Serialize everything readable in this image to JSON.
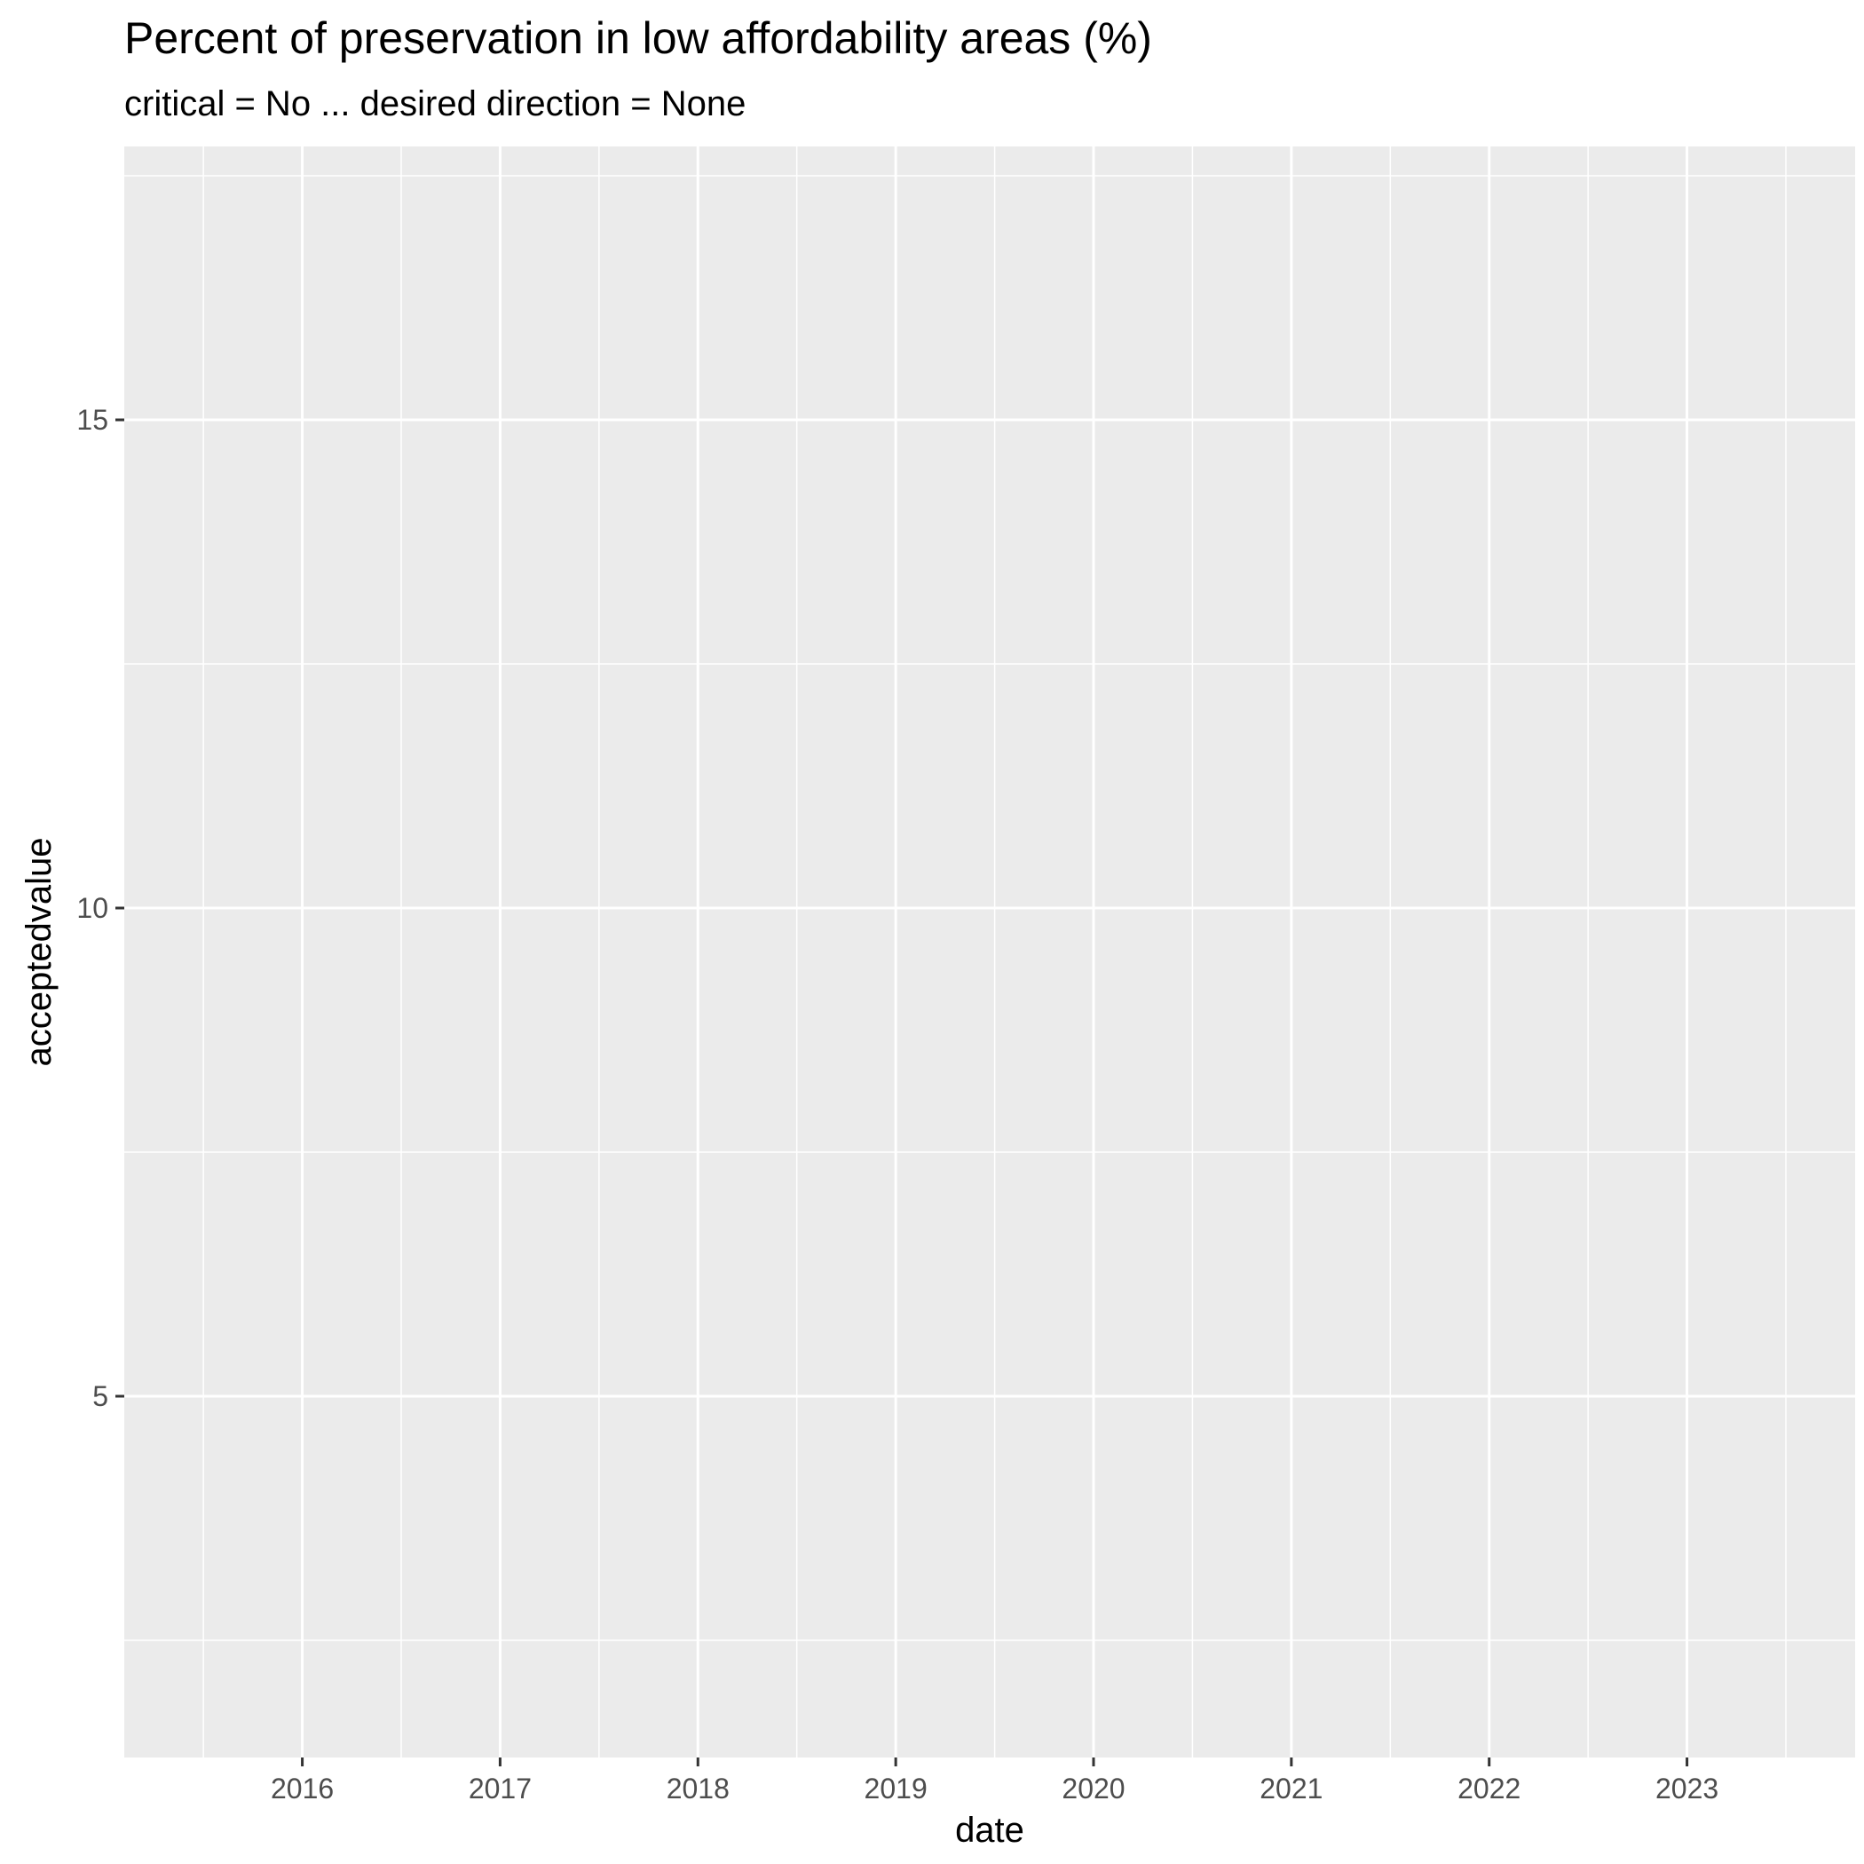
{
  "chart_data": {
    "type": "line",
    "title": "Percent of preservation in low affordability areas (%)",
    "subtitle": "critical = No ... desired direction = None",
    "xlabel": "date",
    "ylabel": "acceptedvalue",
    "x_ticks": [
      "2016",
      "2017",
      "2018",
      "2019",
      "2020",
      "2021",
      "2022",
      "2023"
    ],
    "x_tick_values": [
      2016,
      2017,
      2018,
      2019,
      2020,
      2021,
      2022,
      2023
    ],
    "xlim": [
      2015.1,
      2023.85
    ],
    "y_ticks": [
      "5",
      "10",
      "15"
    ],
    "y_tick_values": [
      5,
      10,
      15
    ],
    "ylim": [
      1.3,
      17.8
    ],
    "series": [],
    "grid": true,
    "legend": "none",
    "colors": {
      "panel_background": "#ebebeb",
      "grid_major": "#ffffff",
      "grid_minor": "#ffffff",
      "tick_text": "#4d4d4d",
      "tick_mark": "#333333"
    }
  }
}
